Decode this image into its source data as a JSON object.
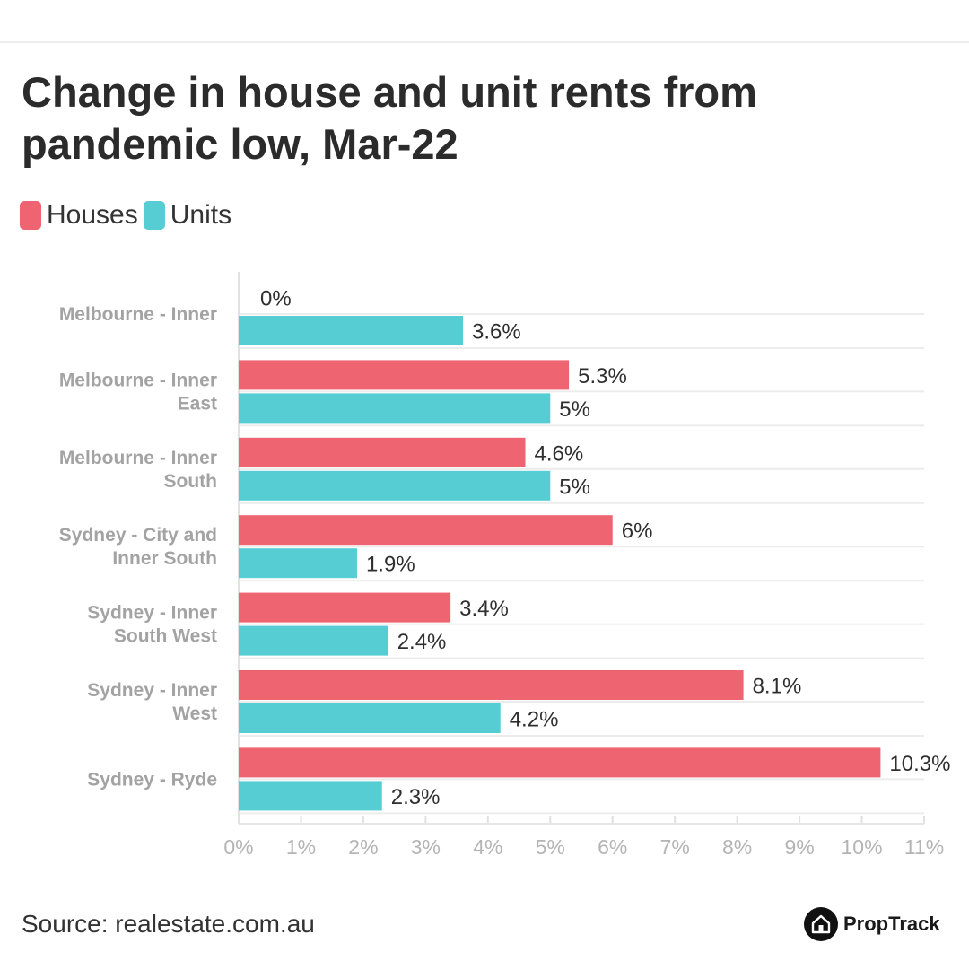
{
  "title": "Change in house and unit rents from pandemic low, Mar-22",
  "legend": [
    {
      "label": "Houses",
      "color": "#ee6470"
    },
    {
      "label": "Units",
      "color": "#55cdd3"
    }
  ],
  "source": "Source: realestate.com.au",
  "brand": {
    "name": "PropTrack",
    "icon": "house-icon"
  },
  "chart_data": {
    "type": "bar",
    "orientation": "horizontal",
    "categories": [
      [
        "Melbourne - Inner"
      ],
      [
        "Melbourne - Inner",
        "East"
      ],
      [
        "Melbourne - Inner",
        "South"
      ],
      [
        "Sydney - City and",
        "Inner South"
      ],
      [
        "Sydney - Inner",
        "South West"
      ],
      [
        "Sydney - Inner",
        "West"
      ],
      [
        "Sydney - Ryde"
      ]
    ],
    "series": [
      {
        "name": "Houses",
        "color": "#ee6470",
        "values": [
          0,
          5.3,
          4.6,
          6,
          3.4,
          8.1,
          10.3
        ],
        "labels": [
          "0%",
          "5.3%",
          "4.6%",
          "6%",
          "3.4%",
          "8.1%",
          "10.3%"
        ]
      },
      {
        "name": "Units",
        "color": "#55cdd3",
        "values": [
          3.6,
          5,
          5,
          1.9,
          2.4,
          4.2,
          2.3
        ],
        "labels": [
          "3.6%",
          "5%",
          "5%",
          "1.9%",
          "2.4%",
          "4.2%",
          "2.3%"
        ]
      }
    ],
    "xlim": [
      0,
      11
    ],
    "xticks": [
      "0%",
      "1%",
      "2%",
      "3%",
      "4%",
      "5%",
      "6%",
      "7%",
      "8%",
      "9%",
      "10%",
      "11%"
    ],
    "grid": true,
    "legend_position": "top-left"
  }
}
